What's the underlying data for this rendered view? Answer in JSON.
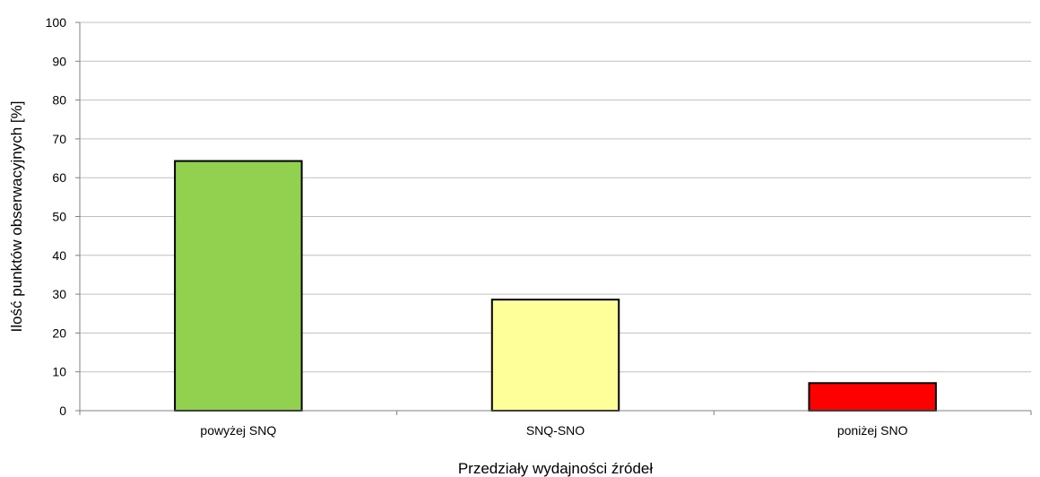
{
  "chart_data": {
    "type": "bar",
    "categories": [
      "powyżej SNQ",
      "SNQ-SNO",
      "poniżej SNO"
    ],
    "values": [
      64.3,
      28.6,
      7.1
    ],
    "colors": [
      "#92d050",
      "#ffff99",
      "#ff0000"
    ],
    "xlabel": "Przedziały wydajności źródeł",
    "ylabel": "Ilość punktów obserwacyjnych [%]",
    "ylim": [
      0,
      100
    ],
    "yticks": [
      "0",
      "10",
      "20",
      "30",
      "40",
      "50",
      "60",
      "70",
      "80",
      "90",
      "100"
    ],
    "grid": true,
    "legend": "none"
  }
}
